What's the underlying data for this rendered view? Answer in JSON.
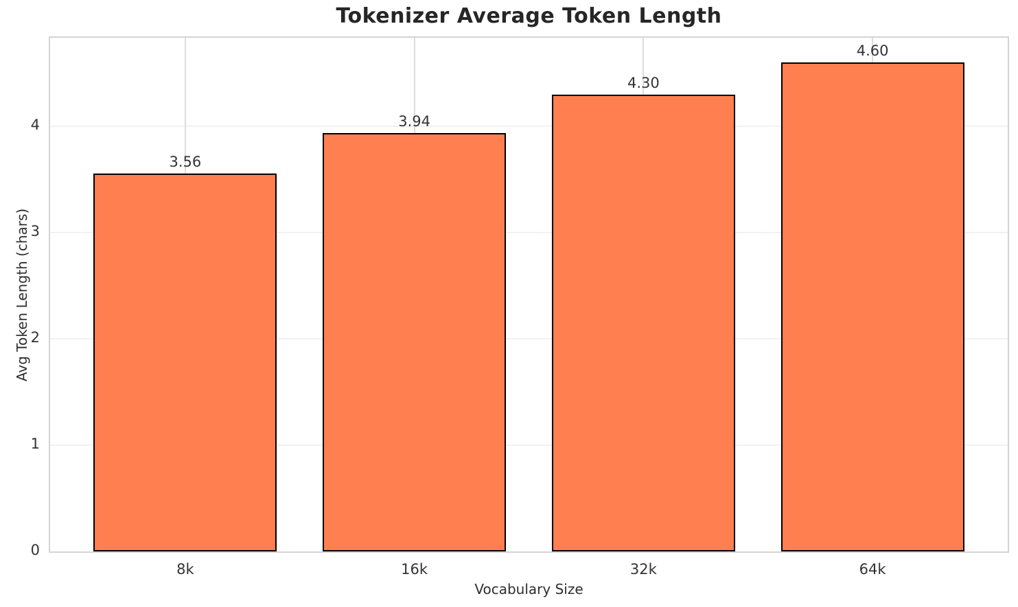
{
  "title": "Tokenizer Average Token Length",
  "axes": {
    "xlabel": "Vocabulary Size",
    "ylabel": "Avg Token Length (chars)"
  },
  "colors": {
    "bar_fill": "#FF7F50",
    "bar_edge": "#000000",
    "vgrid": "#dcdcdc",
    "hgrid": "#f1f1f1",
    "spine": "#d4d4d4",
    "title_text": "#262626",
    "tick_text": "#333333"
  },
  "chart_data": {
    "type": "bar",
    "title": "Tokenizer Average Token Length",
    "xlabel": "Vocabulary Size",
    "ylabel": "Avg Token Length (chars)",
    "categories": [
      "8k",
      "16k",
      "32k",
      "64k"
    ],
    "values": [
      3.56,
      3.94,
      4.3,
      4.6
    ],
    "value_labels": [
      "3.56",
      "3.94",
      "4.30",
      "4.60"
    ],
    "yticks": [
      0,
      1,
      2,
      3,
      4
    ],
    "ytick_labels": [
      "0",
      "1",
      "2",
      "3",
      "4"
    ],
    "ylim": [
      0,
      4.835
    ],
    "bar_width_fraction": 0.8,
    "x_edge_padding_units": 0.59,
    "grid": true,
    "legend": null,
    "bar_color": "#FF7F50",
    "bar_edge_color": "#000000"
  }
}
